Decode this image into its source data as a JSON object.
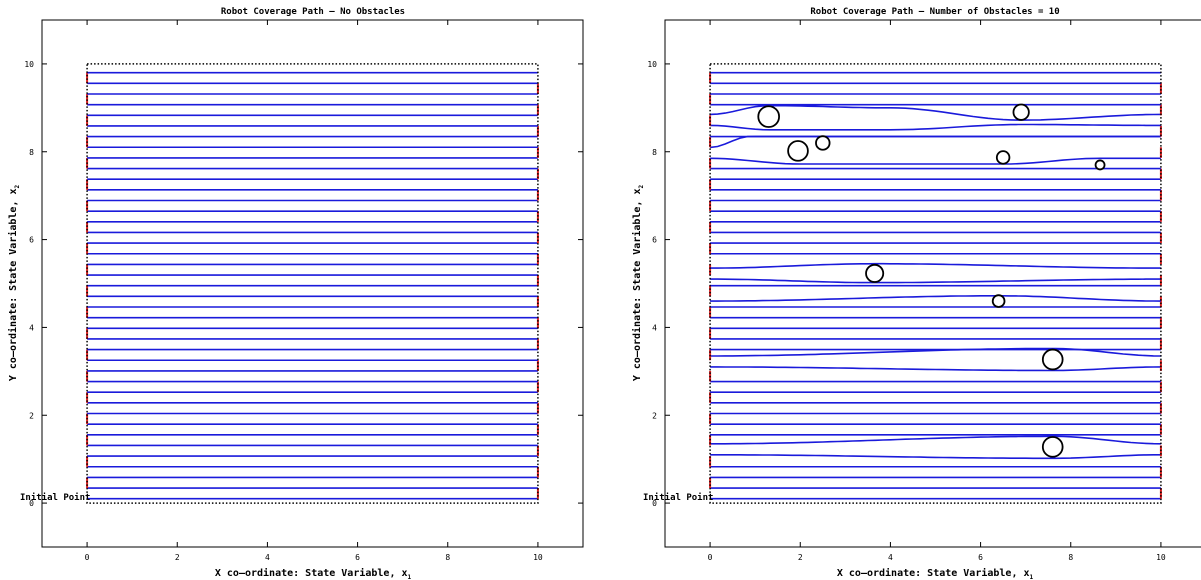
{
  "chart_data": [
    {
      "type": "line",
      "title": "Robot Coverage Path – No Obstacles",
      "xlabel": "X co–ordinate: State Variable, x",
      "xlabel_sub": "1",
      "ylabel": "Y co–ordinate: State Variable, x",
      "ylabel_sub": "2",
      "xlim": [
        -1,
        11
      ],
      "ylim": [
        -1,
        11
      ],
      "xticks": [
        "0",
        "2",
        "4",
        "6",
        "8",
        "10"
      ],
      "yticks": [
        "0",
        "2",
        "4",
        "6",
        "8",
        "10"
      ],
      "annotation": "Initial Point",
      "boundary": {
        "x": [
          0,
          10
        ],
        "y": [
          0,
          10
        ],
        "style": "dotted",
        "color": "#000000"
      },
      "path_color": "#1a1adb",
      "turn_color": "#e02020",
      "lane_count": 40,
      "lane_spacing": 0.25,
      "lane_x": [
        0,
        10
      ],
      "obstacles": []
    },
    {
      "type": "line",
      "title": "Robot Coverage Path – Number of Obstacles = 10",
      "xlabel": "X co–ordinate: State Variable, x",
      "xlabel_sub": "1",
      "ylabel": "Y co–ordinate: State Variable, x",
      "ylabel_sub": "2",
      "xlim": [
        -1,
        11
      ],
      "ylim": [
        -1,
        11
      ],
      "xticks": [
        "0",
        "2",
        "4",
        "6",
        "8",
        "10"
      ],
      "yticks": [
        "0",
        "2",
        "4",
        "6",
        "8",
        "10"
      ],
      "annotation": "Initial Point",
      "boundary": {
        "x": [
          0,
          10
        ],
        "y": [
          0,
          10
        ],
        "style": "dotted",
        "color": "#000000"
      },
      "path_color": "#1a1adb",
      "turn_color": "#e02020",
      "lane_count": 40,
      "lane_spacing": 0.25,
      "lane_x": [
        0,
        10
      ],
      "obstacles": [
        {
          "x": 1.3,
          "y": 8.8,
          "r": 0.23
        },
        {
          "x": 2.5,
          "y": 8.2,
          "r": 0.15
        },
        {
          "x": 1.95,
          "y": 8.02,
          "r": 0.22
        },
        {
          "x": 6.9,
          "y": 8.9,
          "r": 0.17
        },
        {
          "x": 6.5,
          "y": 7.87,
          "r": 0.14
        },
        {
          "x": 8.65,
          "y": 7.7,
          "r": 0.1
        },
        {
          "x": 3.65,
          "y": 5.23,
          "r": 0.19
        },
        {
          "x": 6.4,
          "y": 4.6,
          "r": 0.13
        },
        {
          "x": 7.6,
          "y": 3.27,
          "r": 0.22
        },
        {
          "x": 7.6,
          "y": 1.28,
          "r": 0.22
        }
      ],
      "deformed_lanes": [
        {
          "x": [
            0,
            1.3,
            4,
            6.9,
            10
          ],
          "y": [
            8.85,
            9.05,
            9.0,
            8.72,
            8.85
          ]
        },
        {
          "x": [
            0,
            1.3,
            4,
            6.9,
            10
          ],
          "y": [
            8.6,
            8.5,
            8.5,
            8.62,
            8.6
          ]
        },
        {
          "x": [
            0,
            0.9,
            2.5,
            10
          ],
          "y": [
            8.1,
            8.35,
            8.35,
            8.35
          ]
        },
        {
          "x": [
            0,
            2.5,
            3.5,
            6.5,
            10
          ],
          "y": [
            7.85,
            7.72,
            7.85,
            8.02,
            8.1
          ]
        },
        {
          "x": [
            0,
            2.0,
            6.5,
            8.65,
            10
          ],
          "y": [
            7.85,
            7.72,
            7.72,
            7.85,
            7.85
          ]
        },
        {
          "x": [
            0,
            3.65,
            10
          ],
          "y": [
            5.35,
            5.45,
            5.35
          ]
        },
        {
          "x": [
            0,
            3.65,
            10
          ],
          "y": [
            5.1,
            5.02,
            5.1
          ]
        },
        {
          "x": [
            0,
            6.4,
            10
          ],
          "y": [
            4.6,
            4.72,
            4.6
          ]
        },
        {
          "x": [
            0,
            7.6,
            10
          ],
          "y": [
            3.35,
            3.52,
            3.35
          ]
        },
        {
          "x": [
            0,
            7.6,
            10
          ],
          "y": [
            3.1,
            3.02,
            3.1
          ]
        },
        {
          "x": [
            0,
            7.6,
            10
          ],
          "y": [
            1.35,
            1.52,
            1.35
          ]
        },
        {
          "x": [
            0,
            7.6,
            10
          ],
          "y": [
            1.1,
            1.02,
            1.1
          ]
        }
      ]
    }
  ]
}
